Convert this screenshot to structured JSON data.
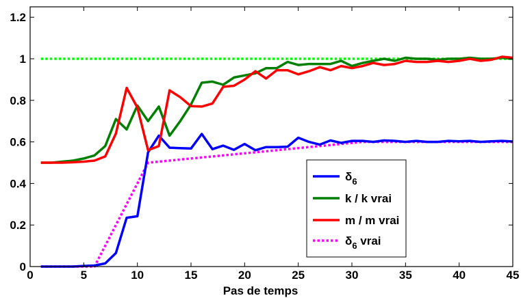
{
  "chart_data": {
    "type": "line",
    "title": "",
    "xlabel": "Pas de temps",
    "ylabel": "",
    "xlim": [
      0,
      45
    ],
    "ylim": [
      0,
      1.25
    ],
    "xticks": [
      0,
      5,
      10,
      15,
      20,
      25,
      30,
      35,
      40,
      45
    ],
    "xtick_labels": [
      "0",
      "5",
      "10",
      "15",
      "20",
      "25",
      "30",
      "35",
      "40",
      "45"
    ],
    "yticks": [
      0,
      0.2,
      0.4,
      0.6,
      0.8,
      1,
      1.2
    ],
    "ytick_labels": [
      "0",
      "0.2",
      "0.4",
      "0.6",
      "0.8",
      "1",
      "1.2"
    ],
    "grid": false,
    "legend_position": "lower-right",
    "series": [
      {
        "name": "δ6",
        "legend_main": "δ",
        "legend_sub": "6",
        "legend_suffix": "",
        "color": "#0000ff",
        "style": "solid",
        "x": [
          1,
          2,
          3,
          4,
          5,
          6,
          7,
          8,
          9,
          10,
          11,
          12,
          13,
          14,
          15,
          16,
          17,
          18,
          19,
          20,
          21,
          22,
          23,
          24,
          25,
          26,
          27,
          28,
          29,
          30,
          31,
          32,
          33,
          34,
          35,
          36,
          37,
          38,
          39,
          40,
          41,
          42,
          43,
          44,
          45
        ],
        "values": [
          0,
          0,
          0,
          0,
          0.003,
          0.005,
          0.015,
          0.065,
          0.235,
          0.242,
          0.55,
          0.63,
          0.572,
          0.57,
          0.568,
          0.638,
          0.565,
          0.582,
          0.562,
          0.59,
          0.56,
          0.575,
          0.575,
          0.577,
          0.62,
          0.6,
          0.587,
          0.607,
          0.595,
          0.605,
          0.605,
          0.6,
          0.607,
          0.605,
          0.6,
          0.605,
          0.6,
          0.6,
          0.605,
          0.603,
          0.605,
          0.6,
          0.603,
          0.605,
          0.602
        ]
      },
      {
        "name": "k / k vrai",
        "legend_main": "k / k vrai",
        "legend_sub": "",
        "legend_suffix": "",
        "color": "#007f00",
        "style": "solid",
        "x": [
          1,
          2,
          3,
          4,
          5,
          6,
          7,
          8,
          9,
          10,
          11,
          12,
          13,
          14,
          15,
          16,
          17,
          18,
          19,
          20,
          21,
          22,
          23,
          24,
          25,
          26,
          27,
          28,
          29,
          30,
          31,
          32,
          33,
          34,
          35,
          36,
          37,
          38,
          39,
          40,
          41,
          42,
          43,
          44,
          45
        ],
        "values": [
          0.5,
          0.5,
          0.505,
          0.51,
          0.52,
          0.535,
          0.58,
          0.71,
          0.66,
          0.775,
          0.7,
          0.77,
          0.63,
          0.7,
          0.78,
          0.885,
          0.89,
          0.875,
          0.91,
          0.92,
          0.93,
          0.955,
          0.955,
          0.985,
          0.97,
          0.975,
          0.975,
          0.975,
          0.99,
          0.965,
          0.98,
          0.99,
          1.0,
          0.99,
          1.005,
          1.0,
          1.0,
          0.995,
          1.0,
          1.0,
          1.005,
          1.0,
          1.0,
          1.005,
          1.0
        ]
      },
      {
        "name": "m / m vrai",
        "legend_main": "m / m vrai",
        "legend_sub": "",
        "legend_suffix": "",
        "color": "#ff0000",
        "style": "solid",
        "x": [
          1,
          2,
          3,
          4,
          5,
          6,
          7,
          8,
          9,
          10,
          11,
          12,
          13,
          14,
          15,
          16,
          17,
          18,
          19,
          20,
          21,
          22,
          23,
          24,
          25,
          26,
          27,
          28,
          29,
          30,
          31,
          32,
          33,
          34,
          35,
          36,
          37,
          38,
          39,
          40,
          41,
          42,
          43,
          44,
          45
        ],
        "values": [
          0.5,
          0.5,
          0.5,
          0.502,
          0.505,
          0.51,
          0.53,
          0.64,
          0.86,
          0.765,
          0.56,
          0.58,
          0.848,
          0.815,
          0.772,
          0.77,
          0.785,
          0.865,
          0.87,
          0.9,
          0.94,
          0.905,
          0.945,
          0.945,
          0.925,
          0.94,
          0.96,
          0.945,
          0.965,
          0.955,
          0.965,
          0.98,
          0.97,
          0.975,
          0.99,
          0.985,
          0.985,
          0.99,
          0.985,
          0.99,
          1.0,
          0.99,
          0.995,
          1.01,
          1.005
        ]
      },
      {
        "name": "δ6 vrai",
        "legend_main": "δ",
        "legend_sub": "6",
        "legend_suffix": " vrai",
        "color": "#ff00ff",
        "style": "dotted",
        "x": [
          1,
          2,
          3,
          4,
          5,
          6,
          7,
          8,
          9,
          10,
          11,
          12,
          13,
          14,
          15,
          16,
          17,
          18,
          19,
          20,
          21,
          22,
          23,
          24,
          25,
          26,
          27,
          28,
          29,
          30,
          31,
          32,
          33,
          34,
          35,
          36,
          37,
          38,
          39,
          40,
          41,
          42,
          43,
          44,
          45
        ],
        "values": [
          0,
          0,
          0,
          0,
          0,
          0,
          0.1,
          0.2,
          0.3,
          0.4,
          0.5,
          0.505,
          0.51,
          0.515,
          0.52,
          0.525,
          0.53,
          0.535,
          0.54,
          0.545,
          0.55,
          0.555,
          0.56,
          0.565,
          0.57,
          0.575,
          0.58,
          0.585,
          0.59,
          0.595,
          0.6,
          0.6,
          0.6,
          0.6,
          0.6,
          0.6,
          0.6,
          0.6,
          0.6,
          0.6,
          0.6,
          0.6,
          0.6,
          0.6,
          0.6
        ]
      },
      {
        "name": "",
        "legend_main": "",
        "legend_sub": "",
        "legend_suffix": "",
        "in_legend": false,
        "color": "#00ff00",
        "style": "dotted",
        "x": [
          1,
          45
        ],
        "values": [
          1,
          1
        ]
      }
    ]
  }
}
